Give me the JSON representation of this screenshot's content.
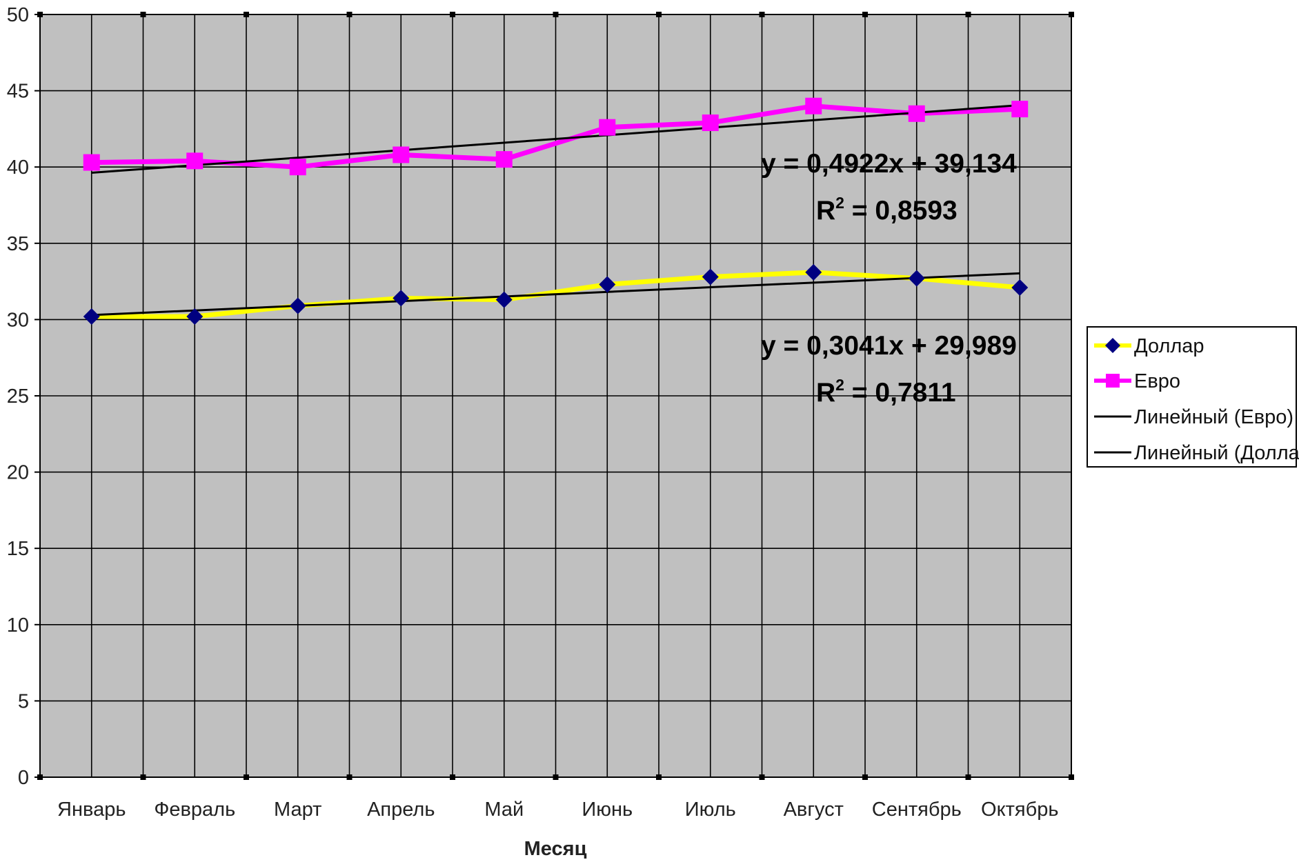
{
  "chart_data": {
    "type": "line",
    "xlabel": "Месяц",
    "ylabel": "",
    "ylim": [
      0,
      50
    ],
    "yticks": [
      0,
      5,
      10,
      15,
      20,
      25,
      30,
      35,
      40,
      45,
      50
    ],
    "grid": true,
    "legend_position": "right",
    "categories": [
      "Январь",
      "Февраль",
      "Март",
      "Апрель",
      "Май",
      "Июнь",
      "Июль",
      "Август",
      "Сентябрь",
      "Октябрь"
    ],
    "series": [
      {
        "name": "Доллар",
        "color": "#ffff00",
        "marker": "diamond",
        "marker_color": "#000080",
        "values": [
          30.2,
          30.2,
          30.9,
          31.4,
          31.3,
          32.3,
          32.8,
          33.1,
          32.7,
          32.1
        ]
      },
      {
        "name": "Евро",
        "color": "#ff00ff",
        "marker": "square",
        "marker_color": "#ff00ff",
        "values": [
          40.3,
          40.4,
          40.0,
          40.8,
          40.5,
          42.6,
          42.9,
          44.0,
          43.5,
          43.8
        ]
      }
    ],
    "trendlines": [
      {
        "name": "Линейный (Евро)",
        "of": "Евро",
        "slope": 0.4922,
        "intercept": 39.134,
        "color": "#000000",
        "equation": "y = 0,4922x + 39,134",
        "r2_label": "R",
        "r2_value": " = 0,8593"
      },
      {
        "name": "Линейный (Доллар)",
        "of": "Доллар",
        "slope": 0.3041,
        "intercept": 29.989,
        "color": "#000000",
        "equation": "y = 0,3041x + 29,989",
        "r2_label": "R",
        "r2_value": " = 0,7811"
      }
    ],
    "legend": [
      "Доллар",
      "Евро",
      "Линейный (Евро)",
      "Линейный (Доллар)"
    ],
    "plot_background": "#c0c0c0",
    "grid_color": "#000000"
  }
}
